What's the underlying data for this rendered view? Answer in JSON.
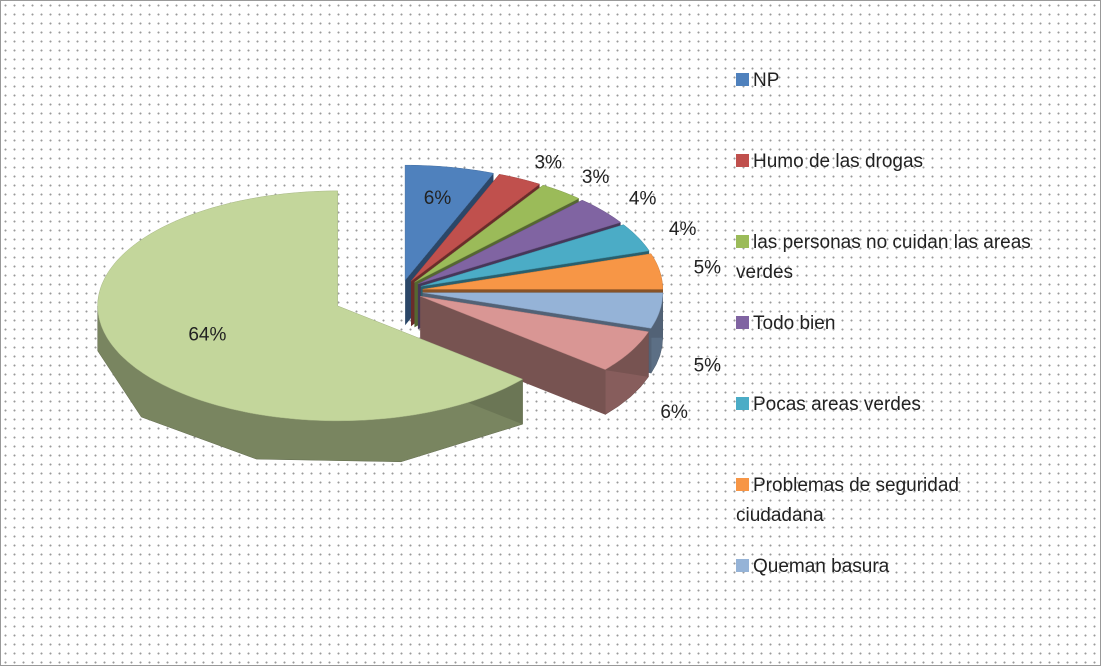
{
  "chart_data": {
    "type": "pie",
    "categories": [
      "NP",
      "Humo de las drogas",
      "las personas no cuidan las areas verdes",
      "Todo bien",
      "Pocas areas verdes",
      "Problemas de seguridad ciudadana",
      "Queman basura",
      null,
      null
    ],
    "values": [
      6,
      3,
      3,
      4,
      4,
      5,
      5,
      6,
      64
    ],
    "value_labels": [
      "6%",
      "3%",
      "3%",
      "4%",
      "4%",
      "5%",
      "5%",
      "6%",
      "64%"
    ],
    "colors": [
      "#4f81bd",
      "#c0504d",
      "#9bbb59",
      "#8064a2",
      "#4bacc6",
      "#f79646",
      "#95b3d7",
      "#d99694",
      "#c3d69b"
    ],
    "legend": "right"
  }
}
